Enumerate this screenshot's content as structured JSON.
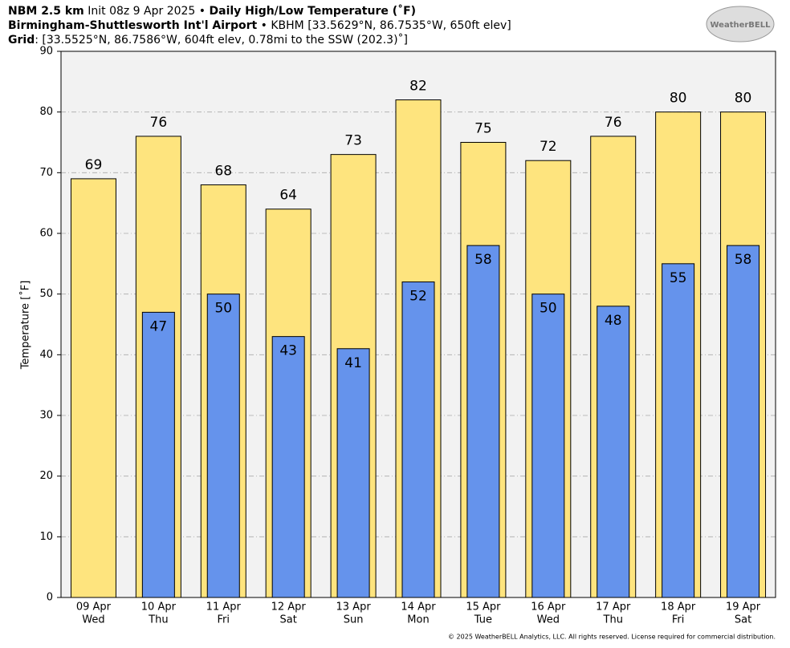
{
  "chart_data": {
    "type": "bar",
    "title_parts": [
      "NBM 2.5 km",
      "Init 08z 9 Apr 2025",
      "•",
      "Daily High/Low Temperature (˚F)"
    ],
    "subtitle_parts": [
      "Birmingham-Shuttlesworth Int'l Airport",
      "• KBHM [33.5629°N, 86.7535°W, 650ft elev]"
    ],
    "grid_parts": [
      "Grid",
      ": [33.5525°N, 86.7586°W, 604ft elev, 0.78mi to the SSW (202.3)˚]"
    ],
    "logo": "WeatherBELL",
    "y_label": "Temperature [˚F]",
    "footer": "© 2025 WeatherBELL Analytics, LLC. All rights reserved. License required for commercial distribution.",
    "categories": [
      "09 Apr",
      "10 Apr",
      "11 Apr",
      "12 Apr",
      "13 Apr",
      "14 Apr",
      "15 Apr",
      "16 Apr",
      "17 Apr",
      "18 Apr",
      "19 Apr"
    ],
    "weekdays": [
      "Wed",
      "Thu",
      "Fri",
      "Sat",
      "Sun",
      "Mon",
      "Tue",
      "Wed",
      "Thu",
      "Fri",
      "Sat"
    ],
    "series": [
      {
        "name": "High",
        "color": "#fee47e",
        "values": [
          69,
          76,
          68,
          64,
          73,
          82,
          75,
          72,
          76,
          80,
          80
        ]
      },
      {
        "name": "Low",
        "color": "#6593ec",
        "values": [
          null,
          47,
          50,
          43,
          41,
          52,
          58,
          50,
          48,
          55,
          58
        ]
      }
    ],
    "ylim": [
      0,
      90
    ],
    "yticks": [
      0,
      10,
      20,
      30,
      40,
      50,
      60,
      70,
      80,
      90
    ],
    "grid": true
  }
}
